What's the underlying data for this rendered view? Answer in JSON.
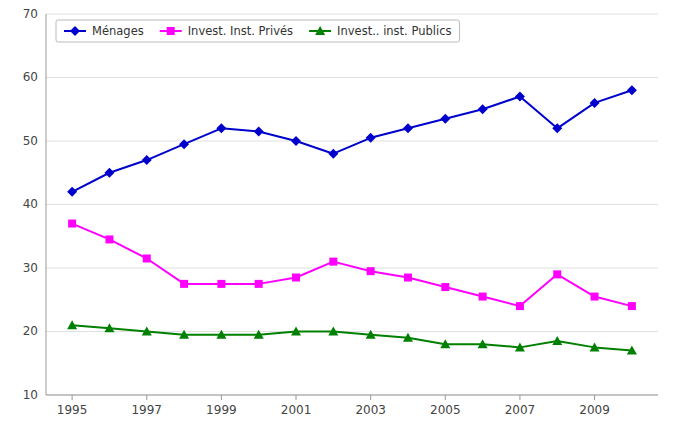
{
  "chart_data": {
    "type": "line",
    "x": [
      1995,
      1996,
      1997,
      1998,
      1999,
      2000,
      2001,
      2002,
      2003,
      2004,
      2005,
      2006,
      2007,
      2008,
      2009,
      2010
    ],
    "series": [
      {
        "name": "Ménages",
        "color": "#0000CC",
        "marker": "diamond",
        "values": [
          42,
          45,
          47,
          49.5,
          52,
          51.5,
          50,
          48,
          50.5,
          52,
          53.5,
          55,
          57,
          52,
          56,
          58
        ]
      },
      {
        "name": "Invest. Inst. Privés",
        "color": "#FF00FF",
        "marker": "square",
        "values": [
          37,
          34.5,
          31.5,
          27.5,
          27.5,
          27.5,
          28.5,
          31,
          29.5,
          28.5,
          27,
          25.5,
          24,
          29,
          25.5,
          24
        ]
      },
      {
        "name": "Invest.. inst. Publics",
        "color": "#008000",
        "marker": "triangle",
        "values": [
          21,
          20.5,
          20,
          19.5,
          19.5,
          19.5,
          20,
          20,
          19.5,
          19,
          18,
          18,
          17.5,
          18.5,
          17.5,
          17
        ]
      }
    ],
    "xlim": [
      1994.3,
      2010.7
    ],
    "xticks": [
      1995,
      1997,
      1999,
      2001,
      2003,
      2005,
      2007,
      2009
    ],
    "ylim": [
      10,
      70
    ],
    "yticks": [
      10,
      20,
      30,
      40,
      50,
      60,
      70
    ],
    "grid": true,
    "legend": "upper left"
  }
}
